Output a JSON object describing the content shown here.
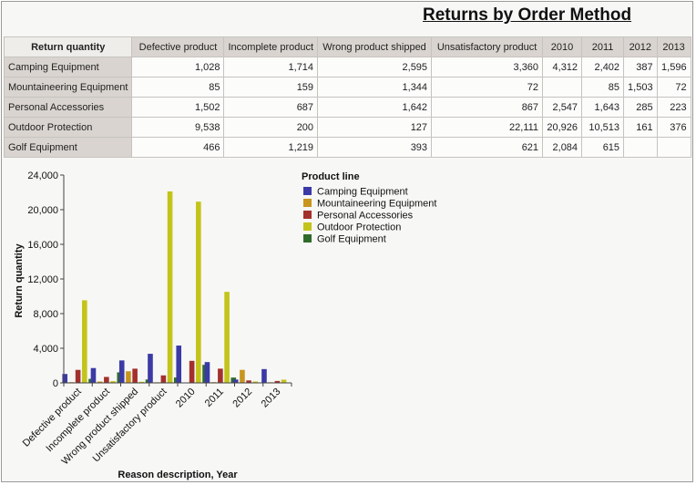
{
  "report": {
    "title": "Returns by Order Method"
  },
  "crosstab": {
    "corner_label": "Return quantity",
    "columns": [
      "Defective product",
      "Incomplete product",
      "Wrong product shipped",
      "Unsatisfactory product",
      "2010",
      "2011",
      "2012",
      "2013"
    ],
    "rows": [
      {
        "label": "Camping Equipment",
        "values": [
          "1,028",
          "1,714",
          "2,595",
          "3,360",
          "4,312",
          "2,402",
          "387",
          "1,596"
        ]
      },
      {
        "label": "Mountaineering Equipment",
        "values": [
          "85",
          "159",
          "1,344",
          "72",
          "",
          "85",
          "1,503",
          "72"
        ]
      },
      {
        "label": "Personal Accessories",
        "values": [
          "1,502",
          "687",
          "1,642",
          "867",
          "2,547",
          "1,643",
          "285",
          "223"
        ]
      },
      {
        "label": "Outdoor Protection",
        "values": [
          "9,538",
          "200",
          "127",
          "22,111",
          "20,926",
          "10,513",
          "161",
          "376"
        ]
      },
      {
        "label": "Golf Equipment",
        "values": [
          "466",
          "1,219",
          "393",
          "621",
          "2,084",
          "615",
          "",
          ""
        ]
      }
    ]
  },
  "chart_data": {
    "type": "bar",
    "title": "",
    "xlabel": "Reason description, Year",
    "ylabel": "Return quantity",
    "ylim": [
      0,
      24000
    ],
    "yticks": [
      "0",
      "4,000",
      "8,000",
      "12,000",
      "16,000",
      "20,000",
      "24,000"
    ],
    "ytick_values": [
      0,
      4000,
      8000,
      12000,
      16000,
      20000,
      24000
    ],
    "grid": false,
    "legend_title": "Product line",
    "legend_position": "right",
    "categories": [
      "Defective product",
      "Incomplete product",
      "Wrong product shipped",
      "Unsatisfactory product",
      "2010",
      "2011",
      "2012",
      "2013"
    ],
    "series": [
      {
        "name": "Camping Equipment",
        "color": "#3b3aa6",
        "values": [
          1028,
          1714,
          2595,
          3360,
          4312,
          2402,
          387,
          1596
        ]
      },
      {
        "name": "Mountaineering Equipment",
        "color": "#c8951f",
        "values": [
          85,
          159,
          1344,
          72,
          null,
          85,
          1503,
          72
        ]
      },
      {
        "name": "Personal Accessories",
        "color": "#a3302c",
        "values": [
          1502,
          687,
          1642,
          867,
          2547,
          1643,
          285,
          223
        ]
      },
      {
        "name": "Outdoor Protection",
        "color": "#c3c41a",
        "values": [
          9538,
          200,
          127,
          22111,
          20926,
          10513,
          161,
          376
        ]
      },
      {
        "name": "Golf Equipment",
        "color": "#2f6a2a",
        "values": [
          466,
          1219,
          393,
          621,
          2084,
          615,
          null,
          null
        ]
      }
    ]
  }
}
